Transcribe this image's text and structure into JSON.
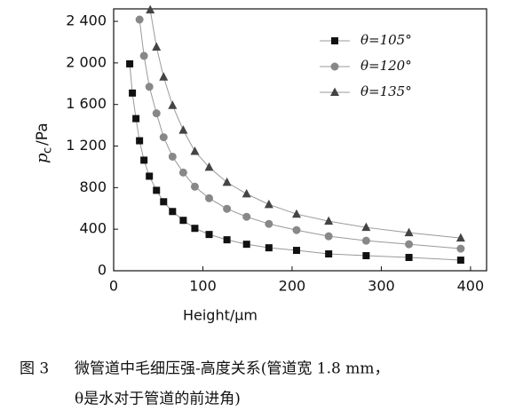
{
  "chart_data": {
    "type": "line",
    "ylabel": {
      "main": "p",
      "sub": "c",
      "rest": "/Pa"
    },
    "xlabel": "Height/μm",
    "xlim": [
      0,
      418
    ],
    "xticks": [
      0,
      100,
      200,
      300,
      400
    ],
    "ylim": [
      0,
      2520
    ],
    "yticks": [
      0,
      400,
      800,
      {
        "value": 1200,
        "label": "1 200"
      },
      {
        "value": 1600,
        "label": "1 600"
      },
      {
        "value": 2000,
        "label": "2 000"
      },
      {
        "value": 2400,
        "label": "2 400"
      }
    ],
    "legend_position": "upper right",
    "series": [
      {
        "name": "θ=105°",
        "color": "#111111",
        "marker": "square",
        "x": [
          18,
          21,
          25,
          29,
          34,
          40,
          48,
          56,
          66,
          78,
          91,
          107,
          127,
          149,
          174,
          205,
          241,
          283,
          331,
          389
        ],
        "values": [
          1991,
          1710,
          1464,
          1251,
          1064,
          910,
          774,
          664,
          570,
          485,
          408,
          349,
          298,
          255,
          221,
          196,
          162,
          145,
          128,
          102
        ]
      },
      {
        "name": "θ=120°",
        "color": "#888888",
        "marker": "circle",
        "x": [
          29,
          34,
          40,
          48,
          56,
          66,
          78,
          91,
          107,
          127,
          149,
          174,
          205,
          241,
          283,
          331,
          389
        ],
        "values": [
          2417,
          2068,
          1770,
          1515,
          1285,
          1098,
          945,
          809,
          698,
          596,
          519,
          451,
          391,
          332,
          289,
          255,
          213
        ]
      },
      {
        "name": "θ=135°",
        "color": "#444444",
        "marker": "triangle",
        "x": [
          41,
          48,
          56,
          66,
          78,
          91,
          107,
          127,
          149,
          174,
          205,
          241,
          283,
          331,
          389
        ],
        "values": [
          2510,
          2153,
          1864,
          1591,
          1353,
          1149,
          996,
          851,
          740,
          638,
          545,
          477,
          417,
          366,
          315
        ]
      }
    ]
  },
  "caption": {
    "label": "图 3",
    "line1": "微管道中毛细压强-高度关系(管道宽 1.8 mm，",
    "line2": "θ是水对于管道的前进角)"
  }
}
